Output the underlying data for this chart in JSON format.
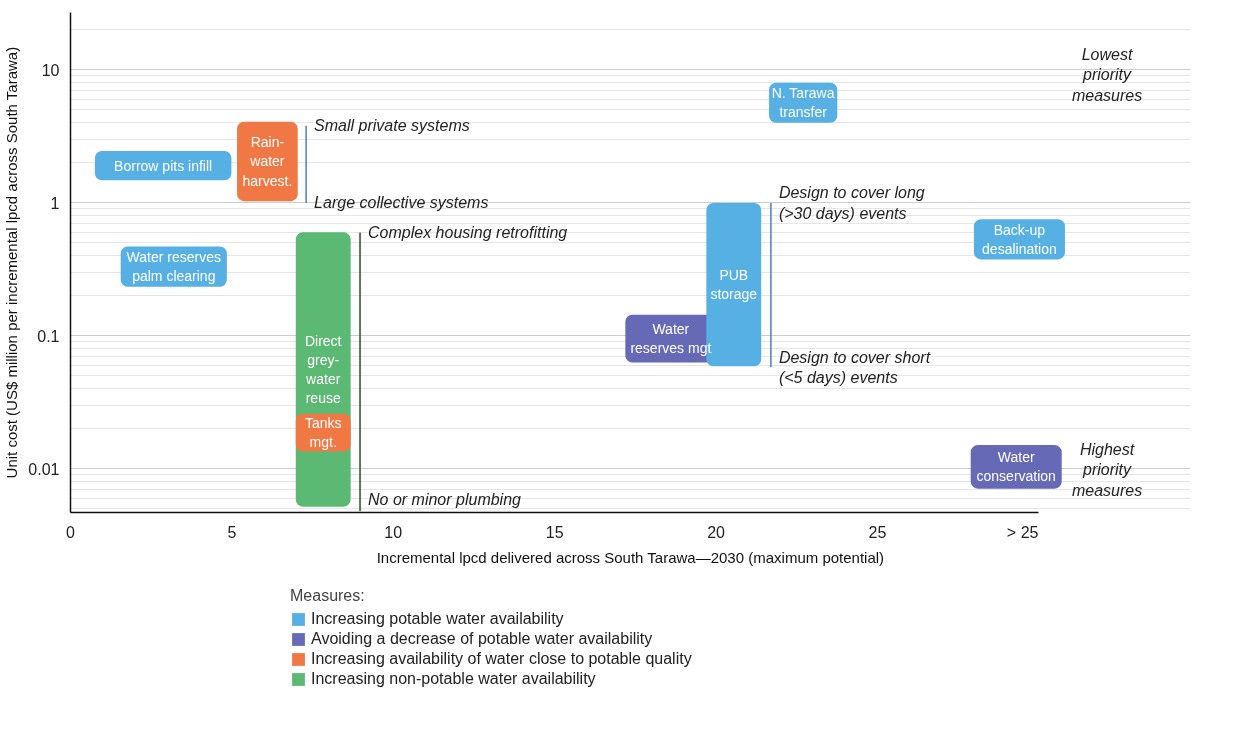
{
  "chart_data": {
    "type": "bar",
    "xlabel": "Incremental lpcd delivered across South Tarawa—2030 (maximum potential)",
    "ylabel": "Unit cost (US$ million per incremental lpcd across South Tarawa)",
    "legend_title": "Measures:",
    "log": "y",
    "grid": "y",
    "legend": "bottom",
    "xlim": [
      0,
      30
    ],
    "xticks": [
      0,
      5,
      10,
      15,
      20,
      25,
      {
        "value": 29.5,
        "label": "> 25"
      }
    ],
    "ylim": [
      0.0047,
      27
    ],
    "yticks": [
      0.01,
      0.1,
      1,
      10
    ],
    "series": [
      {
        "name": "Increasing potable water availability",
        "color": "#56b0e4",
        "x": [
          2.87,
          3.2,
          20.55,
          22.7,
          29.4
        ],
        "base": [
          1.48,
          0.234,
          0.059,
          4.0,
          0.376
        ],
        "values": [
          0.98,
          0.236,
          0.941,
          4.0,
          0.377
        ]
      },
      {
        "name": "Avoiding a decrease of potable water availability",
        "color": "#6669b5",
        "x": [
          18.6,
          29.3
        ],
        "base": [
          0.063,
          0.0071
        ],
        "values": [
          0.081,
          0.008
        ]
      },
      {
        "name": "Increasing availability of water close to potable quality",
        "color": "#f07844",
        "x": [
          6.1,
          7.83
        ],
        "base": [
          1.03,
          0.0135
        ],
        "values": [
          3.04,
          0.0125
        ]
      },
      {
        "name": "Increasing non-potable water availability",
        "color": "#5bb973",
        "x": [
          7.83
        ],
        "base": [
          0.0052
        ],
        "values": [
          0.595
        ]
      },
      {
        "type": "line",
        "color": "#4a7dc0",
        "x": [
          7.3,
          7.3
        ],
        "values": [
          1.0,
          3.8
        ]
      },
      {
        "type": "line",
        "color": "#2e4a2e",
        "x": [
          8.97,
          8.97
        ],
        "values": [
          0.0048,
          0.6
        ]
      },
      {
        "type": "line",
        "color": "#4a7dc0",
        "x": [
          21.7,
          21.7
        ],
        "values": [
          0.058,
          1.0
        ]
      }
    ],
    "annotations": [
      "Borrow pits infill",
      "Water reserves\npalm clearing",
      "PUB\nstorage",
      "N. Tarawa\ntransfer",
      "Back-up\ndesalination",
      "Water\nreserves mgt",
      "Water\nconservation",
      "Rain-\nwater\nharvest.",
      "Tanks\nmgt.",
      "Direct\ngrey-\nwater\nreuse",
      {
        "text": "Small private systems",
        "x": 7.3,
        "y": 3.8
      },
      {
        "text": "Large collective systems",
        "x": 7.3,
        "y": 1.0
      },
      {
        "text": "Complex housing retrofitting",
        "x": 8.97,
        "y": 0.6
      },
      {
        "text": "No or minor plumbing",
        "x": 8.97,
        "y": 0.0048
      },
      {
        "text": "Design to cover long\n(>30 days) events",
        "x": 21.7,
        "y": 1.0
      },
      {
        "text": "Design to cover short\n(<5 days) events",
        "x": 21.7,
        "y": 0.058
      },
      "Lowest\npriority\nmeasures",
      "Highest\npriority\nmeasures"
    ]
  }
}
